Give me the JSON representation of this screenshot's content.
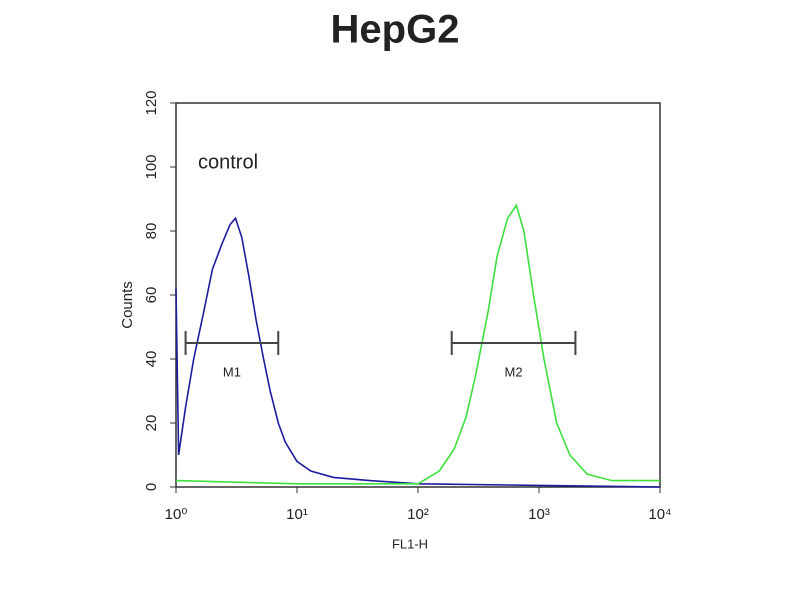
{
  "chart_data": {
    "type": "line",
    "title": "HepG2",
    "x_label": "FL1-H",
    "y_label": "Counts",
    "annotation": "control",
    "xscale": "log",
    "xlim": [
      1,
      10000
    ],
    "xticks": [
      {
        "value": 1,
        "label": "10⁰"
      },
      {
        "value": 10,
        "label": "10¹"
      },
      {
        "value": 100,
        "label": "10²"
      },
      {
        "value": 1000,
        "label": "10³"
      },
      {
        "value": 10000,
        "label": "10⁴"
      }
    ],
    "ylim": [
      0,
      120
    ],
    "yticks": [
      0,
      20,
      40,
      60,
      80,
      100,
      120
    ],
    "series": [
      {
        "color": "#1c1c9c",
        "x": [
          1,
          1.05,
          1.2,
          1.4,
          1.7,
          2,
          2.4,
          2.8,
          3.1,
          3.5,
          4,
          4.6,
          5.3,
          6,
          7,
          8,
          10,
          13,
          20,
          40,
          100,
          1000,
          10000
        ],
        "values": [
          62,
          10,
          25,
          40,
          55,
          68,
          76,
          82,
          84,
          78,
          66,
          52,
          40,
          30,
          20,
          14,
          8,
          5,
          3,
          2,
          1,
          0.5,
          0
        ]
      },
      {
        "color": "#3ee03e",
        "x": [
          1,
          10,
          100,
          150,
          200,
          250,
          300,
          380,
          450,
          550,
          650,
          750,
          900,
          1100,
          1400,
          1800,
          2500,
          4000,
          10000
        ],
        "values": [
          2,
          1,
          1,
          5,
          12,
          22,
          35,
          55,
          72,
          84,
          88,
          80,
          60,
          40,
          20,
          10,
          4,
          2,
          2
        ]
      }
    ],
    "markers": [
      {
        "label": "M1",
        "x": [
          1.2,
          7
        ],
        "y": 45
      },
      {
        "label": "M2",
        "x": [
          190,
          2000
        ],
        "y": 45
      }
    ]
  }
}
